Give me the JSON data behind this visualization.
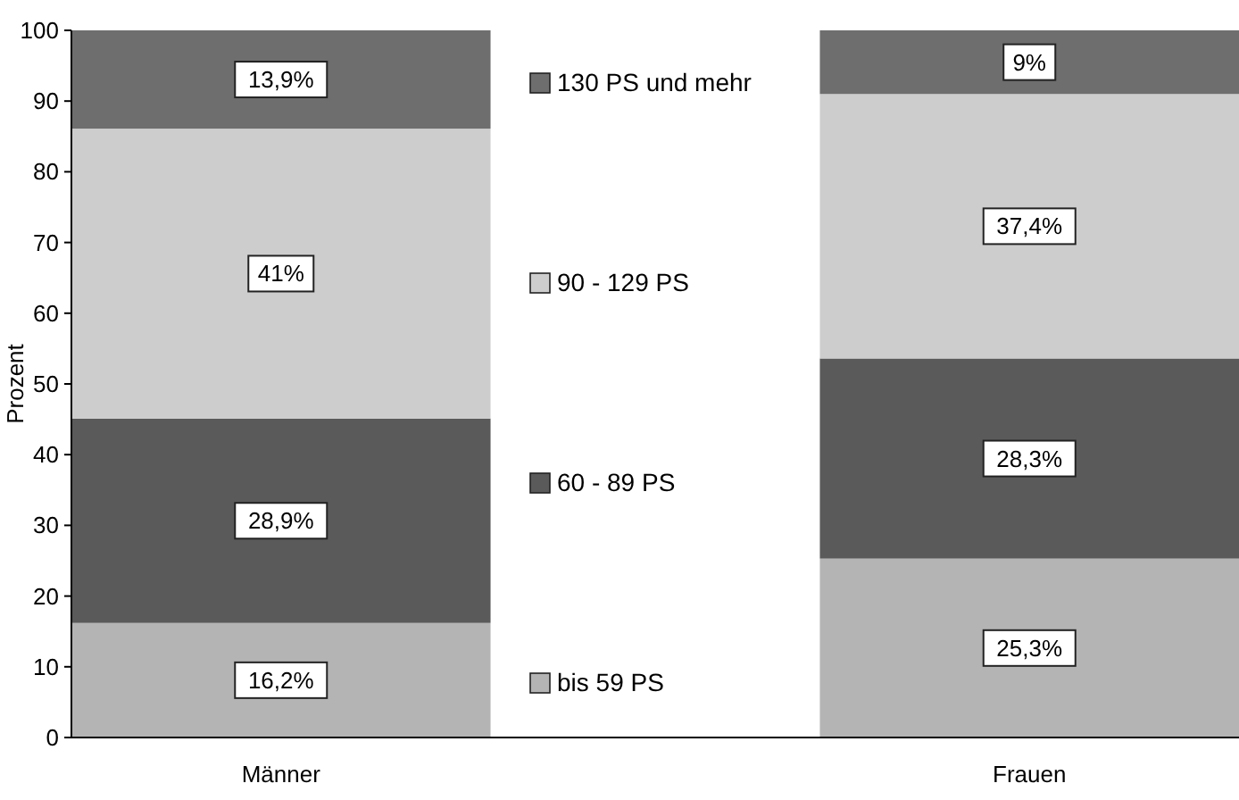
{
  "chart_data": {
    "type": "bar",
    "stacked": true,
    "ylabel": "Prozent",
    "categories": [
      "Männer",
      "Frauen"
    ],
    "ylim": [
      0,
      100
    ],
    "yticks": [
      0,
      10,
      20,
      30,
      40,
      50,
      60,
      70,
      80,
      90,
      100
    ],
    "legend": "center",
    "grid": false,
    "series": [
      {
        "name": "bis 59 PS",
        "color": "#b4b4b4",
        "values": [
          16.2,
          25.3
        ],
        "value_labels": [
          "16,2%",
          "25,3%"
        ]
      },
      {
        "name": "60 - 89 PS",
        "color": "#5a5a5a",
        "values": [
          28.9,
          28.3
        ],
        "value_labels": [
          "28,9%",
          "28,3%"
        ]
      },
      {
        "name": "90 - 129 PS",
        "color": "#cdcdcd",
        "values": [
          41,
          37.4
        ],
        "value_labels": [
          "41%",
          "37,4%"
        ]
      },
      {
        "name": "130 PS und mehr",
        "color": "#6e6e6e",
        "values": [
          13.9,
          9
        ],
        "value_labels": [
          "13,9%",
          "9%"
        ]
      }
    ]
  }
}
